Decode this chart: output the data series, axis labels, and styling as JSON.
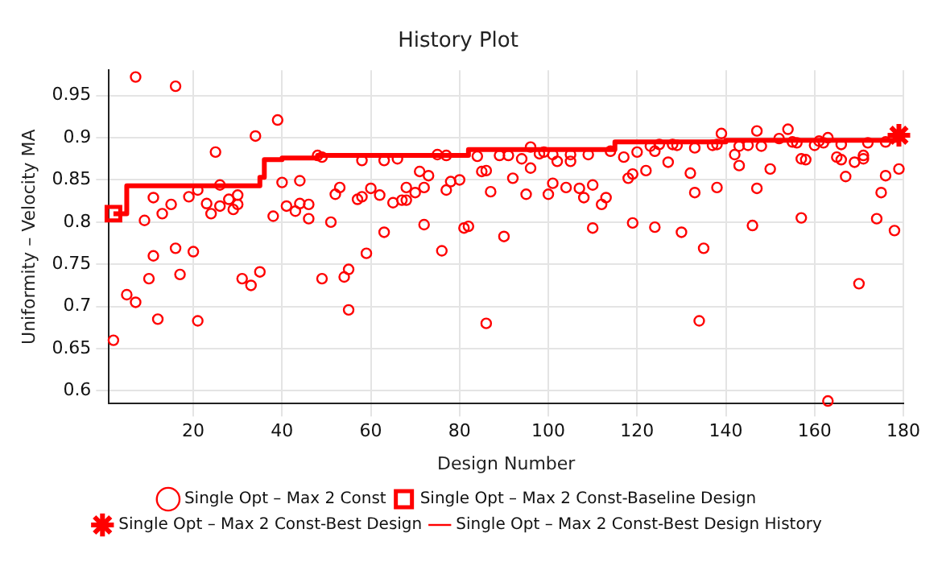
{
  "chart_data": {
    "type": "scatter",
    "title": "History Plot",
    "xlabel": "Design Number",
    "ylabel": "Uniformity – Velocity MA",
    "xlim": [
      1,
      180
    ],
    "ylim": [
      0.585,
      0.98
    ],
    "xticks": [
      20,
      40,
      60,
      80,
      100,
      120,
      140,
      160,
      180
    ],
    "yticks": [
      0.6,
      0.65,
      0.7,
      0.75,
      0.8,
      0.85,
      0.9,
      0.95
    ],
    "grid": true,
    "legend": "bottom",
    "series": [
      {
        "name": "Single Opt – Max 2 Const",
        "type": "scatter",
        "marker": "circle",
        "color": "#ff0000",
        "x": [
          7,
          16,
          39,
          34,
          25,
          26,
          40,
          44,
          11,
          19,
          21,
          15,
          13,
          23,
          24,
          26,
          28,
          30,
          29,
          30,
          38,
          41,
          43,
          44,
          9,
          11,
          16,
          20,
          10,
          17,
          31,
          33,
          35,
          5,
          7,
          12,
          21,
          2,
          48,
          49,
          58,
          63,
          66,
          75,
          77,
          84,
          46,
          46,
          51,
          52,
          53,
          57,
          58,
          60,
          62,
          65,
          67,
          68,
          68,
          70,
          71,
          72,
          73,
          77,
          78,
          80,
          85,
          86,
          87,
          63,
          72,
          81,
          82,
          59,
          76,
          49,
          54,
          55,
          55,
          86,
          89,
          91,
          94,
          96,
          98,
          99,
          101,
          102,
          105,
          105,
          109,
          114,
          117,
          120,
          123,
          124,
          125,
          128,
          127,
          96,
          92,
          95,
          100,
          101,
          104,
          107,
          108,
          110,
          112,
          113,
          118,
          119,
          122,
          90,
          110,
          119,
          124,
          130,
          129,
          133,
          137,
          138,
          139,
          143,
          145,
          147,
          148,
          152,
          154,
          155,
          156,
          160,
          161,
          162,
          163,
          166,
          172,
          176,
          142,
          143,
          150,
          157,
          158,
          165,
          166,
          169,
          171,
          171,
          167,
          176,
          179,
          132,
          133,
          138,
          147,
          175,
          157,
          174,
          178,
          146,
          135,
          170,
          134,
          163
        ],
        "values": [
          0.972,
          0.961,
          0.921,
          0.902,
          0.883,
          0.844,
          0.847,
          0.849,
          0.829,
          0.83,
          0.838,
          0.821,
          0.81,
          0.822,
          0.81,
          0.819,
          0.827,
          0.832,
          0.815,
          0.821,
          0.807,
          0.819,
          0.813,
          0.822,
          0.802,
          0.76,
          0.769,
          0.765,
          0.733,
          0.738,
          0.733,
          0.725,
          0.741,
          0.714,
          0.705,
          0.685,
          0.683,
          0.66,
          0.879,
          0.877,
          0.873,
          0.873,
          0.875,
          0.88,
          0.879,
          0.878,
          0.821,
          0.804,
          0.8,
          0.833,
          0.841,
          0.827,
          0.83,
          0.84,
          0.832,
          0.823,
          0.826,
          0.826,
          0.841,
          0.835,
          0.86,
          0.841,
          0.855,
          0.838,
          0.848,
          0.85,
          0.86,
          0.861,
          0.836,
          0.788,
          0.797,
          0.793,
          0.795,
          0.763,
          0.766,
          0.733,
          0.735,
          0.744,
          0.696,
          0.68,
          0.879,
          0.879,
          0.875,
          0.889,
          0.881,
          0.883,
          0.88,
          0.872,
          0.88,
          0.872,
          0.88,
          0.884,
          0.877,
          0.883,
          0.89,
          0.884,
          0.892,
          0.892,
          0.871,
          0.864,
          0.852,
          0.833,
          0.833,
          0.846,
          0.841,
          0.84,
          0.829,
          0.844,
          0.821,
          0.829,
          0.852,
          0.857,
          0.861,
          0.783,
          0.793,
          0.799,
          0.794,
          0.788,
          0.891,
          0.888,
          0.891,
          0.892,
          0.905,
          0.89,
          0.891,
          0.908,
          0.89,
          0.899,
          0.91,
          0.895,
          0.894,
          0.891,
          0.896,
          0.894,
          0.9,
          0.892,
          0.894,
          0.895,
          0.88,
          0.867,
          0.863,
          0.875,
          0.874,
          0.877,
          0.874,
          0.871,
          0.879,
          0.875,
          0.854,
          0.855,
          0.863,
          0.858,
          0.835,
          0.841,
          0.84,
          0.835,
          0.805,
          0.804,
          0.79,
          0.796,
          0.769,
          0.727,
          0.683,
          0.588
        ]
      },
      {
        "name": "Single Opt – Max 2 Const-Baseline Design",
        "type": "scatter",
        "marker": "square",
        "color": "#ff0000",
        "x": [
          2
        ],
        "values": [
          0.81
        ]
      },
      {
        "name": "Single Opt – Max 2 Const-Best Design",
        "type": "scatter",
        "marker": "cross",
        "color": "#ff0000",
        "x": [
          179
        ],
        "values": [
          0.903
        ]
      },
      {
        "name": "Single Opt – Max 2 Const-Best Design History",
        "type": "step",
        "marker": "none",
        "color": "#ff0000",
        "x": [
          2,
          5,
          35,
          36,
          40,
          48,
          82,
          115,
          140,
          179
        ],
        "values": [
          0.81,
          0.843,
          0.853,
          0.874,
          0.876,
          0.879,
          0.886,
          0.895,
          0.897,
          0.903
        ]
      }
    ]
  }
}
